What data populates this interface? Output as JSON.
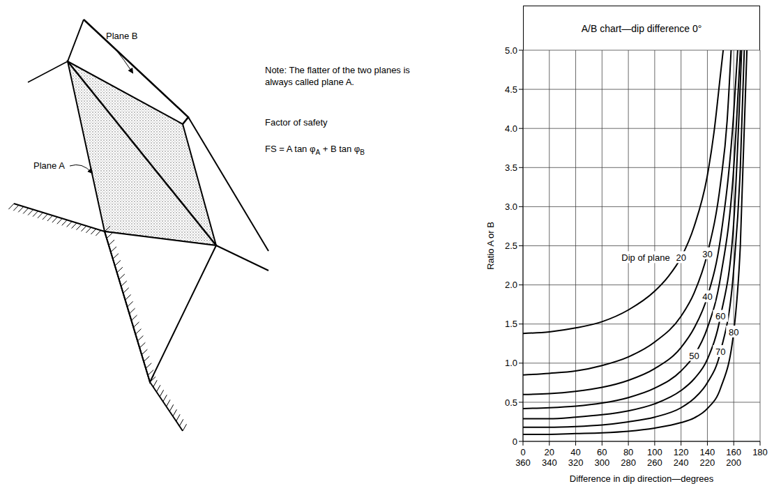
{
  "diagram": {
    "plane_b_label": "Plane B",
    "plane_a_label": "Plane A",
    "note": "Note: The flatter of the two planes is always called plane A.",
    "fs_heading": "Factor of safety",
    "formula": [
      {
        "text": "FS = A tan φ"
      },
      {
        "sub": "A"
      },
      {
        "text": " + B tan φ"
      },
      {
        "sub": "B"
      }
    ]
  },
  "chart_data": {
    "type": "line",
    "title": "A/B chart—dip difference 0°",
    "x_label": "Difference in dip direction—degrees",
    "y_label": "Ratio A or B",
    "xlim": [
      0,
      180
    ],
    "ylim": [
      0,
      5
    ],
    "xticks": [
      0,
      20,
      40,
      60,
      80,
      100,
      120,
      140,
      160,
      180
    ],
    "xticks_lower": [
      {
        "value": 0,
        "label": "360"
      },
      {
        "value": 20,
        "label": "340"
      },
      {
        "value": 40,
        "label": "320"
      },
      {
        "value": 60,
        "label": "300"
      },
      {
        "value": 80,
        "label": "280"
      },
      {
        "value": 100,
        "label": "260"
      },
      {
        "value": 120,
        "label": "240"
      },
      {
        "value": 140,
        "label": "220"
      },
      {
        "value": 160,
        "label": "200"
      }
    ],
    "yticks": [
      0,
      0.5,
      {
        "value": 1,
        "label": "1.0"
      },
      1.5,
      {
        "value": 2,
        "label": "2.0"
      },
      2.5,
      {
        "value": 3,
        "label": "3.0"
      },
      3.5,
      {
        "value": 4,
        "label": "4.0"
      },
      4.5,
      {
        "value": 5,
        "label": "5.0"
      }
    ],
    "grid": true,
    "curve_label_prefix": "Dip of plane",
    "series": [
      {
        "name": "20",
        "color": "#000000",
        "x": [
          0,
          20,
          40,
          60,
          80,
          100,
          110,
          120,
          130,
          140,
          145,
          150,
          152
        ],
        "values": [
          1.38,
          1.4,
          1.45,
          1.53,
          1.68,
          1.92,
          2.1,
          2.35,
          2.75,
          3.4,
          3.95,
          4.7,
          5.0
        ]
      },
      {
        "name": "30",
        "color": "#000000",
        "x": [
          0,
          20,
          40,
          60,
          80,
          100,
          120,
          130,
          140,
          150,
          155,
          158
        ],
        "values": [
          0.85,
          0.87,
          0.9,
          0.97,
          1.08,
          1.27,
          1.6,
          1.9,
          2.4,
          3.3,
          4.1,
          5.0
        ]
      },
      {
        "name": "40",
        "color": "#000000",
        "x": [
          0,
          20,
          40,
          60,
          80,
          100,
          120,
          130,
          140,
          150,
          160,
          163
        ],
        "values": [
          0.6,
          0.61,
          0.64,
          0.69,
          0.78,
          0.93,
          1.2,
          1.45,
          1.85,
          2.6,
          4.2,
          5.0
        ]
      },
      {
        "name": "50",
        "color": "#000000",
        "x": [
          0,
          20,
          40,
          60,
          80,
          100,
          120,
          130,
          140,
          150,
          160,
          165
        ],
        "values": [
          0.42,
          0.43,
          0.45,
          0.49,
          0.56,
          0.68,
          0.9,
          1.1,
          1.45,
          2.1,
          3.5,
          5.0
        ]
      },
      {
        "name": "60",
        "color": "#000000",
        "x": [
          0,
          20,
          40,
          60,
          80,
          100,
          120,
          130,
          140,
          150,
          160,
          166
        ],
        "values": [
          0.29,
          0.29,
          0.31,
          0.34,
          0.39,
          0.48,
          0.65,
          0.8,
          1.05,
          1.6,
          2.8,
          5.0
        ]
      },
      {
        "name": "70",
        "color": "#000000",
        "x": [
          0,
          20,
          40,
          60,
          80,
          100,
          120,
          130,
          140,
          150,
          160,
          165,
          168
        ],
        "values": [
          0.18,
          0.18,
          0.19,
          0.21,
          0.25,
          0.31,
          0.43,
          0.55,
          0.75,
          1.15,
          2.2,
          3.5,
          5.0
        ]
      },
      {
        "name": "80",
        "color": "#000000",
        "x": [
          0,
          20,
          40,
          60,
          80,
          100,
          120,
          130,
          140,
          150,
          160,
          165,
          170
        ],
        "values": [
          0.09,
          0.09,
          0.1,
          0.11,
          0.13,
          0.17,
          0.24,
          0.3,
          0.42,
          0.68,
          1.4,
          2.5,
          5.0
        ]
      }
    ]
  }
}
